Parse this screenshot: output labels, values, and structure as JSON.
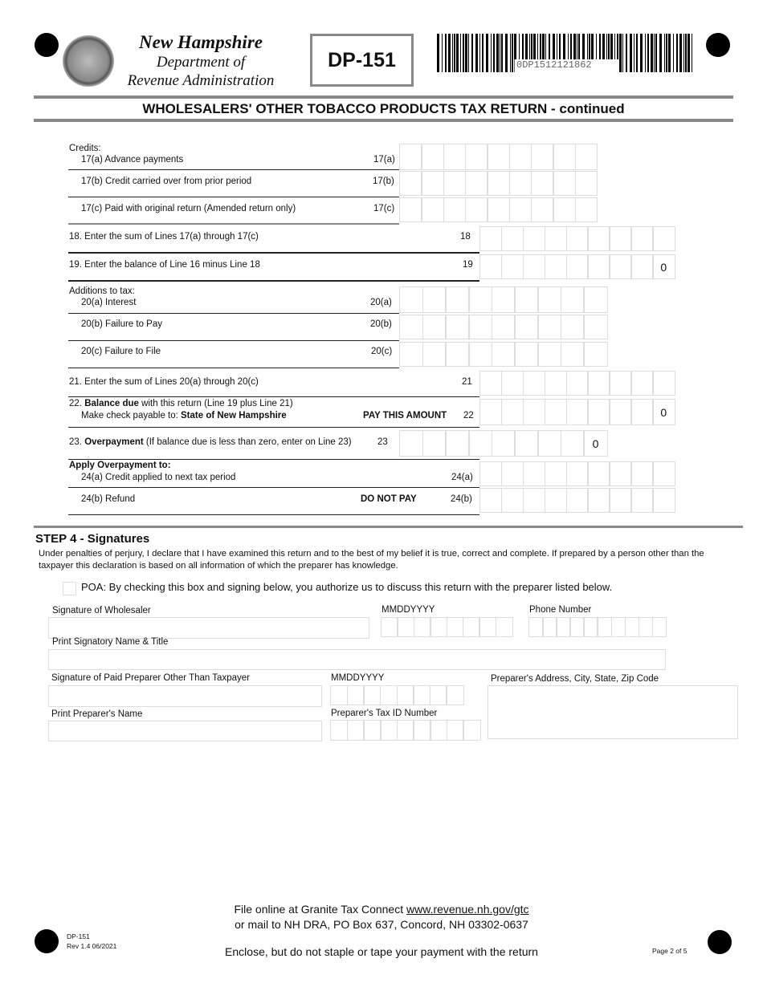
{
  "header": {
    "org_line1": "New Hampshire",
    "org_line2": "Department of",
    "org_line3": "Revenue Administration",
    "form_id": "DP-151",
    "barcode_text": "0DP1512121862",
    "title": "WHOLESALERS' OTHER TOBACCO PRODUCTS TAX RETURN - continued"
  },
  "lines": {
    "credits_heading": "Credits:",
    "l17a": {
      "label": "17(a) Advance payments",
      "num": "17(a)",
      "value": ""
    },
    "l17b": {
      "label": "17(b) Credit carried over from prior period",
      "num": "17(b)",
      "value": ""
    },
    "l17c": {
      "label": "17(c) Paid with original return (Amended return only)",
      "num": "17(c)",
      "value": ""
    },
    "l18": {
      "label": "18. Enter the sum of Lines 17(a) through 17(c)",
      "num": "18",
      "value": ""
    },
    "l19": {
      "label": "19. Enter the balance of Line 16 minus Line 18",
      "num": "19",
      "value": "0"
    },
    "additions_heading": "Additions to tax:",
    "l20a": {
      "label": "20(a) Interest",
      "num": "20(a)",
      "value": ""
    },
    "l20b": {
      "label": "20(b) Failure to Pay",
      "num": "20(b)",
      "value": ""
    },
    "l20c": {
      "label": "20(c) Failure to File",
      "num": "20(c)",
      "value": ""
    },
    "l21": {
      "label": "21. Enter the sum of Lines 20(a) through 20(c)",
      "num": "21",
      "value": ""
    },
    "l22": {
      "label_prefix": "22. ",
      "label_bold": "Balance due",
      "label_rest": " with this return (Line 19 plus Line 21)",
      "line2_prefix": "Make check payable to: ",
      "line2_bold": "State of New Hampshire",
      "note": "PAY THIS AMOUNT",
      "num": "22",
      "value": "0"
    },
    "l23": {
      "label_prefix": "23. ",
      "label_bold": "Overpayment",
      "label_rest": " (If balance due is less than zero, enter on Line 23)",
      "num": "23",
      "value": "0"
    },
    "apply_heading": "Apply Overpayment to:",
    "l24a": {
      "label": "24(a) Credit applied to next tax period",
      "num": "24(a)",
      "value": ""
    },
    "l24b": {
      "label": "24(b) Refund",
      "note": "DO NOT PAY",
      "num": "24(b)",
      "value": ""
    }
  },
  "signatures": {
    "heading": "STEP 4 - Signatures",
    "declaration": "Under penalties of perjury, I declare that I have examined this return and to the best of my belief it is true, correct and complete. If prepared by a person other than the taxpayer this declaration is based on all information of which the preparer has knowledge.",
    "poa_label": "POA:  By checking this box and signing below, you authorize us to discuss this return with the preparer listed below.",
    "poa_checked": false,
    "sig_wholesaler": "Signature of Wholesaler",
    "date1": "MMDDYYYY",
    "phone": "Phone Number",
    "print_signatory": "Print Signatory Name & Title",
    "sig_preparer": "Signature of Paid Preparer Other Than Taxpayer",
    "date2": "MMDDYYYY",
    "preparer_address": "Preparer's Address, City, State, Zip Code",
    "print_preparer": "Print Preparer's Name",
    "tax_id": "Preparer's Tax ID Number"
  },
  "footer": {
    "file_online": "File online at Granite Tax Connect ",
    "url": "www.revenue.nh.gov/gtc",
    "mail": "or mail to NH DRA, PO Box 637, Concord, NH 03302-0637",
    "enclose": "Enclose, but do not staple or tape your payment with the return",
    "form_id": "DP-151",
    "revision": "Rev 1.4 06/2021",
    "page": "Page 2 of 5"
  }
}
